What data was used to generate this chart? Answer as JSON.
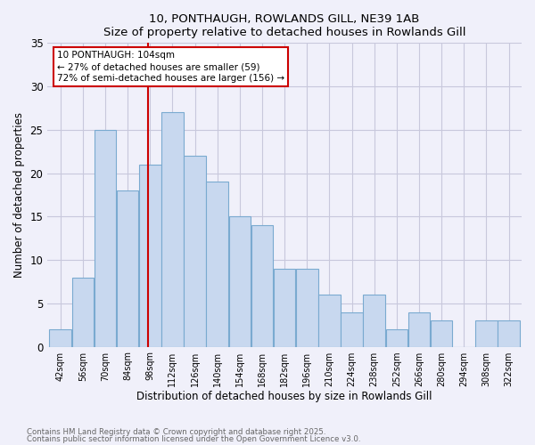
{
  "title1": "10, PONTHAUGH, ROWLANDS GILL, NE39 1AB",
  "title2": "Size of property relative to detached houses in Rowlands Gill",
  "xlabel": "Distribution of detached houses by size in Rowlands Gill",
  "ylabel": "Number of detached properties",
  "bin_labels": [
    "42sqm",
    "56sqm",
    "70sqm",
    "84sqm",
    "98sqm",
    "112sqm",
    "126sqm",
    "140sqm",
    "154sqm",
    "168sqm",
    "182sqm",
    "196sqm",
    "210sqm",
    "224sqm",
    "238sqm",
    "252sqm",
    "266sqm",
    "280sqm",
    "294sqm",
    "308sqm",
    "322sqm"
  ],
  "bin_edges": [
    42,
    56,
    70,
    84,
    98,
    112,
    126,
    140,
    154,
    168,
    182,
    196,
    210,
    224,
    238,
    252,
    266,
    280,
    294,
    308,
    322,
    336
  ],
  "bar_heights": [
    2,
    8,
    25,
    18,
    21,
    27,
    22,
    19,
    15,
    14,
    9,
    9,
    6,
    4,
    6,
    2,
    4,
    3,
    0,
    3,
    3
  ],
  "bar_color": "#c8d8ef",
  "bar_edge_color": "#7aaad0",
  "vline_x": 104,
  "vline_color": "#cc0000",
  "annotation_text": "10 PONTHAUGH: 104sqm\n← 27% of detached houses are smaller (59)\n72% of semi-detached houses are larger (156) →",
  "ylim": [
    0,
    35
  ],
  "yticks": [
    0,
    5,
    10,
    15,
    20,
    25,
    30,
    35
  ],
  "grid_color": "#c8c8dc",
  "background_color": "#f0f0fa",
  "footer1": "Contains HM Land Registry data © Crown copyright and database right 2025.",
  "footer2": "Contains public sector information licensed under the Open Government Licence v3.0."
}
